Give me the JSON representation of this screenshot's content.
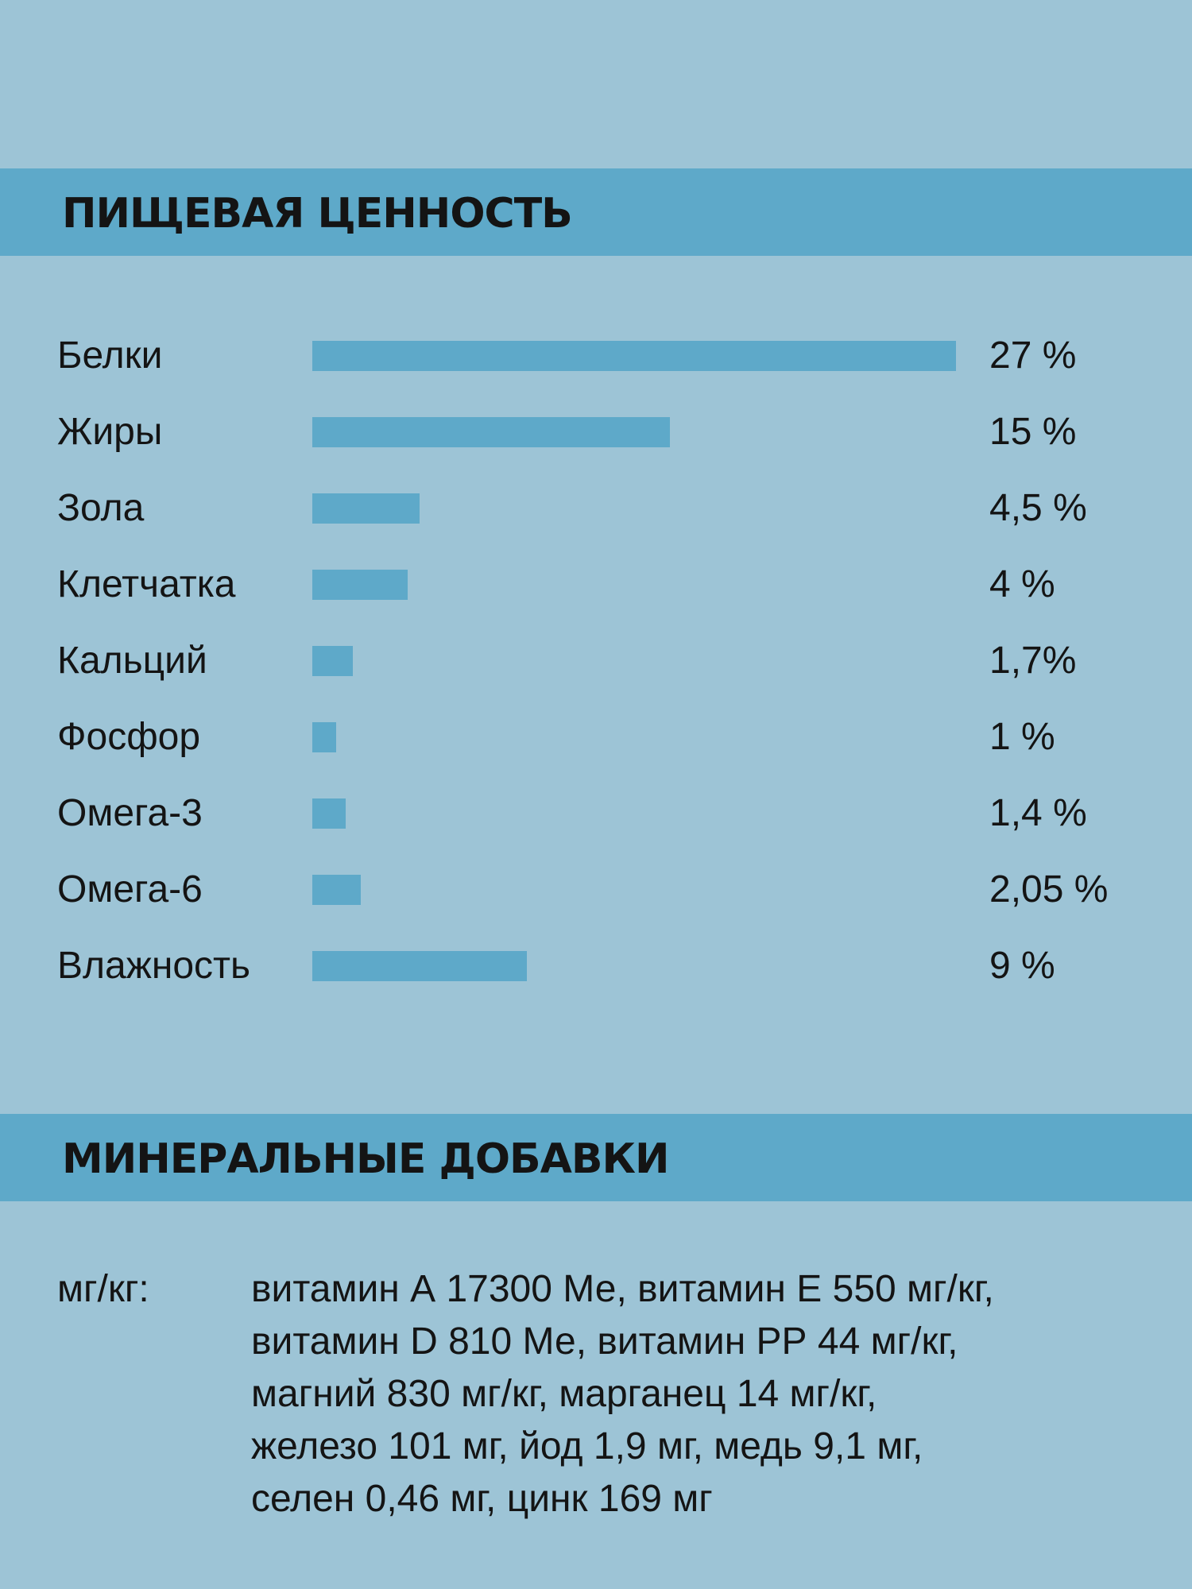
{
  "sections": {
    "nutrition_title": "ПИЩЕВАЯ ЦЕННОСТЬ",
    "minerals_title": "МИНЕРАЛЬНЫЕ ДОБАВКИ"
  },
  "chart_data": {
    "type": "bar",
    "orientation": "horizontal",
    "categories": [
      "Белки",
      "Жиры",
      "Зола",
      "Клетчатка",
      "Кальций",
      "Фосфор",
      "Омега-3",
      "Омега-6",
      "Влажность"
    ],
    "values": [
      27,
      15,
      4.5,
      4,
      1.7,
      1,
      1.4,
      2.05,
      9
    ],
    "value_labels": [
      "27 %",
      "15 %",
      "4,5 %",
      "4 %",
      "1,7%",
      "1 %",
      "1,4 %",
      "2,05 %",
      "9 %"
    ],
    "title": "ПИЩЕВАЯ ЦЕННОСТЬ",
    "grid": false,
    "bar_color": "#5ea9c9"
  },
  "minerals": {
    "label": "мг/кг:",
    "lines": [
      "витамин А 17300 Ме, витамин Е 550 мг/кг,",
      "витамин D 810 Ме, витамин РР 44 мг/кг,",
      "магний 830 мг/кг, марганец 14 мг/кг,",
      "железо 101 мг, йод 1,9 мг, медь 9,1 мг,",
      "селен 0,46 мг, цинк 169 мг"
    ]
  },
  "colors": {
    "background": "#9dc4d6",
    "band": "#5ea9c9",
    "text": "#141414"
  }
}
